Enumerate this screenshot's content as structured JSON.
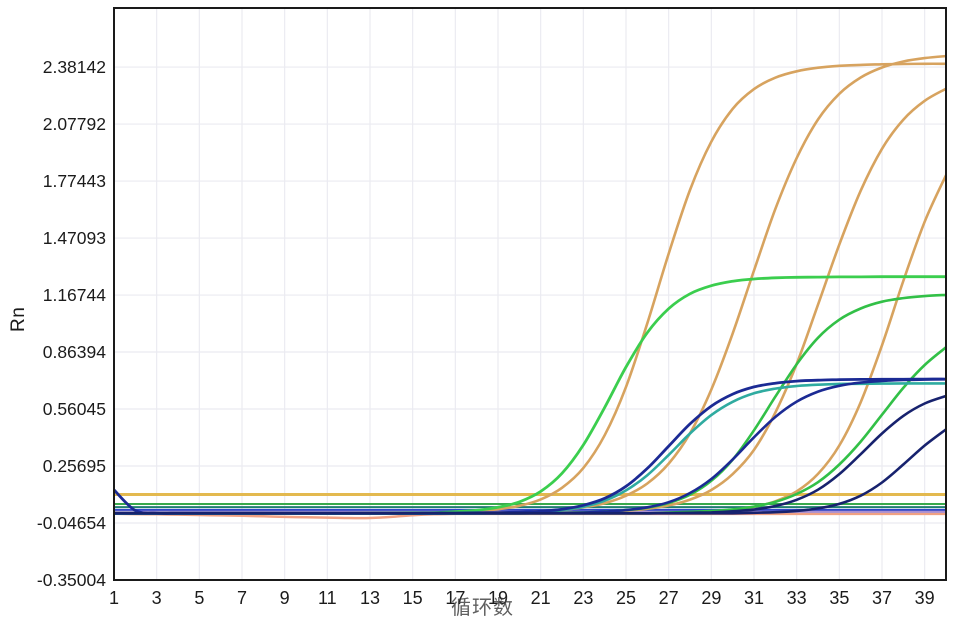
{
  "axis": {
    "y_label": "Rn",
    "x_label": "循环数",
    "y_ticks": [
      "2.38142",
      "2.07792",
      "1.77443",
      "1.47093",
      "1.16744",
      "0.86394",
      "0.56045",
      "0.25695",
      "-0.04654",
      "-0.35004"
    ],
    "x_ticks": [
      "1",
      "3",
      "5",
      "7",
      "9",
      "11",
      "13",
      "15",
      "17",
      "19",
      "21",
      "23",
      "25",
      "27",
      "29",
      "31",
      "33",
      "35",
      "37",
      "39"
    ]
  },
  "colors": {
    "background": "#ffffff",
    "plot_border": "#1a1a1a",
    "grid": "#ebebf1",
    "tick_text": "#1b1b1b",
    "orange": "#d7a35f",
    "green_bright": "#3bce4e",
    "green": "#32c047",
    "teal": "#2faba0",
    "navy": "#1b2a94",
    "navy_dark": "#17226e",
    "threshold_yellow": "#e3b94f",
    "flat_green": "#38a94c",
    "flat_teal": "#1f7e71",
    "flat_blue": "#2e45c8",
    "purple": "#a98fd2",
    "salmon": "#f0a183"
  },
  "chart_data": {
    "type": "line",
    "title": "",
    "xlabel": "循环数",
    "ylabel": "Rn",
    "x_range": [
      1,
      40
    ],
    "y_range": [
      -0.35004,
      2.696
    ],
    "grid": true,
    "legend": "none",
    "x": [
      1,
      2,
      3,
      4,
      5,
      6,
      7,
      8,
      9,
      10,
      11,
      12,
      13,
      14,
      15,
      16,
      17,
      18,
      19,
      20,
      21,
      22,
      23,
      24,
      25,
      26,
      27,
      28,
      29,
      30,
      31,
      32,
      33,
      34,
      35,
      36,
      37,
      38,
      39,
      40
    ],
    "threshold_lines": [
      {
        "name": "threshold-yellow",
        "value": 0.105,
        "color": "#e3b94f",
        "width": 3
      },
      {
        "name": "flat-line-green",
        "value": 0.055,
        "color": "#38a94c",
        "width": 2
      },
      {
        "name": "flat-line-teal",
        "value": 0.038,
        "color": "#1f7e71",
        "width": 2
      },
      {
        "name": "flat-line-blue",
        "value": 0.022,
        "color": "#2e45c8",
        "width": 2.5
      }
    ],
    "series": [
      {
        "name": "sample-salmon-flat",
        "color": "#f0a183",
        "width": 2.5,
        "values": [
          0.003,
          0.001,
          0.0,
          -0.002,
          -0.004,
          -0.006,
          -0.008,
          -0.011,
          -0.014,
          -0.016,
          -0.018,
          -0.02,
          -0.02,
          -0.014,
          -0.005,
          0.0,
          0.002,
          0.002,
          0.002,
          0.002,
          0.002,
          0.002,
          0.002,
          0.002,
          0.002,
          0.002,
          0.002,
          0.002,
          0.002,
          0.002,
          0.002,
          0.002,
          0.002,
          0.002,
          0.002,
          0.002,
          0.002,
          0.002,
          0.002,
          0.002
        ]
      },
      {
        "name": "sample-purple-flat",
        "color": "#a98fd2",
        "width": 2.2,
        "values": [
          0.013,
          0.013,
          0.013,
          0.013,
          0.013,
          0.013,
          0.013,
          0.013,
          0.013,
          0.013,
          0.013,
          0.013,
          0.013,
          0.013,
          0.013,
          0.013,
          0.013,
          0.013,
          0.013,
          0.013,
          0.013,
          0.013,
          0.013,
          0.013,
          0.013,
          0.013,
          0.013,
          0.013,
          0.013,
          0.013,
          0.013,
          0.013,
          0.013,
          0.013,
          0.013,
          0.013,
          0.013,
          0.013,
          0.013,
          0.013
        ]
      },
      {
        "name": "sample-orange-1",
        "color": "#d7a35f",
        "width": 2.6,
        "values": [
          0.005,
          0.005,
          0.005,
          0.005,
          0.005,
          0.005,
          0.005,
          0.005,
          0.005,
          0.005,
          0.005,
          0.005,
          0.006,
          0.006,
          0.007,
          0.008,
          0.011,
          0.017,
          0.027,
          0.045,
          0.079,
          0.141,
          0.246,
          0.421,
          0.678,
          1.017,
          1.388,
          1.727,
          1.984,
          2.159,
          2.264,
          2.325,
          2.359,
          2.378,
          2.388,
          2.393,
          2.396,
          2.398,
          2.399,
          2.399
        ]
      },
      {
        "name": "sample-orange-2",
        "color": "#d7a35f",
        "width": 2.6,
        "values": [
          0.005,
          0.005,
          0.005,
          0.005,
          0.005,
          0.005,
          0.005,
          0.005,
          0.005,
          0.005,
          0.005,
          0.005,
          0.005,
          0.005,
          0.005,
          0.005,
          0.006,
          0.007,
          0.009,
          0.011,
          0.016,
          0.023,
          0.037,
          0.059,
          0.099,
          0.164,
          0.27,
          0.431,
          0.664,
          0.963,
          1.298,
          1.625,
          1.897,
          2.102,
          2.239,
          2.326,
          2.379,
          2.411,
          2.429,
          2.44
        ]
      },
      {
        "name": "sample-orange-3",
        "color": "#d7a35f",
        "width": 2.6,
        "values": [
          0.005,
          0.005,
          0.005,
          0.005,
          0.005,
          0.005,
          0.005,
          0.005,
          0.005,
          0.005,
          0.005,
          0.005,
          0.005,
          0.005,
          0.005,
          0.005,
          0.005,
          0.005,
          0.005,
          0.005,
          0.006,
          0.008,
          0.01,
          0.013,
          0.019,
          0.029,
          0.047,
          0.078,
          0.129,
          0.214,
          0.343,
          0.541,
          0.801,
          1.116,
          1.436,
          1.723,
          1.946,
          2.101,
          2.202,
          2.266
        ]
      },
      {
        "name": "sample-orange-4",
        "color": "#d7a35f",
        "width": 2.6,
        "values": [
          0.005,
          0.005,
          0.005,
          0.005,
          0.005,
          0.005,
          0.005,
          0.005,
          0.005,
          0.005,
          0.005,
          0.005,
          0.005,
          0.005,
          0.005,
          0.005,
          0.005,
          0.005,
          0.005,
          0.005,
          0.005,
          0.005,
          0.005,
          0.005,
          0.005,
          0.005,
          0.007,
          0.01,
          0.015,
          0.024,
          0.04,
          0.069,
          0.122,
          0.215,
          0.366,
          0.597,
          0.9,
          1.242,
          1.558,
          1.805
        ]
      },
      {
        "name": "sample-green-1",
        "color": "#3bce4e",
        "width": 2.8,
        "values": [
          0.005,
          0.005,
          0.005,
          0.005,
          0.005,
          0.005,
          0.005,
          0.005,
          0.005,
          0.005,
          0.005,
          0.005,
          0.006,
          0.007,
          0.008,
          0.009,
          0.014,
          0.021,
          0.037,
          0.066,
          0.122,
          0.218,
          0.369,
          0.569,
          0.784,
          0.967,
          1.095,
          1.174,
          1.217,
          1.241,
          1.253,
          1.259,
          1.262,
          1.263,
          1.264,
          1.264,
          1.265,
          1.265,
          1.265,
          1.265
        ]
      },
      {
        "name": "sample-green-2",
        "color": "#32c047",
        "width": 2.6,
        "values": [
          0.005,
          0.005,
          0.005,
          0.005,
          0.005,
          0.005,
          0.005,
          0.005,
          0.005,
          0.005,
          0.005,
          0.005,
          0.005,
          0.005,
          0.005,
          0.005,
          0.005,
          0.005,
          0.005,
          0.005,
          0.006,
          0.008,
          0.01,
          0.014,
          0.022,
          0.035,
          0.06,
          0.104,
          0.178,
          0.291,
          0.447,
          0.626,
          0.799,
          0.94,
          1.036,
          1.096,
          1.132,
          1.151,
          1.162,
          1.168
        ]
      },
      {
        "name": "sample-green-3",
        "color": "#32c047",
        "width": 2.6,
        "values": [
          0.005,
          0.005,
          0.005,
          0.005,
          0.005,
          0.005,
          0.005,
          0.005,
          0.005,
          0.005,
          0.005,
          0.005,
          0.005,
          0.005,
          0.005,
          0.005,
          0.005,
          0.005,
          0.005,
          0.005,
          0.005,
          0.005,
          0.005,
          0.005,
          0.005,
          0.005,
          0.009,
          0.013,
          0.018,
          0.026,
          0.041,
          0.066,
          0.108,
          0.171,
          0.265,
          0.387,
          0.53,
          0.673,
          0.795,
          0.889
        ]
      },
      {
        "name": "sample-teal-1",
        "color": "#2faba0",
        "width": 2.6,
        "values": [
          0.003,
          0.003,
          0.003,
          0.003,
          0.003,
          0.003,
          0.003,
          0.003,
          0.003,
          0.003,
          0.003,
          0.003,
          0.003,
          0.003,
          0.003,
          0.003,
          0.004,
          0.004,
          0.006,
          0.008,
          0.013,
          0.023,
          0.04,
          0.072,
          0.127,
          0.208,
          0.316,
          0.43,
          0.528,
          0.599,
          0.644,
          0.669,
          0.683,
          0.69,
          0.694,
          0.695,
          0.696,
          0.697,
          0.697,
          0.697
        ]
      },
      {
        "name": "sample-navy-1",
        "color": "#1b2a94",
        "width": 2.8,
        "values": [
          0.13,
          0.02,
          0.006,
          0.006,
          0.006,
          0.006,
          0.006,
          0.006,
          0.006,
          0.006,
          0.006,
          0.006,
          0.006,
          0.006,
          0.006,
          0.007,
          0.007,
          0.008,
          0.009,
          0.011,
          0.016,
          0.027,
          0.048,
          0.085,
          0.149,
          0.244,
          0.363,
          0.481,
          0.576,
          0.64,
          0.678,
          0.698,
          0.709,
          0.714,
          0.717,
          0.718,
          0.719,
          0.719,
          0.72,
          0.72
        ]
      },
      {
        "name": "sample-navy-2",
        "color": "#1b2a94",
        "width": 2.6,
        "values": [
          0.005,
          0.005,
          0.005,
          0.005,
          0.005,
          0.005,
          0.005,
          0.005,
          0.005,
          0.005,
          0.005,
          0.005,
          0.005,
          0.005,
          0.005,
          0.005,
          0.005,
          0.005,
          0.005,
          0.005,
          0.006,
          0.007,
          0.009,
          0.014,
          0.022,
          0.037,
          0.064,
          0.113,
          0.188,
          0.292,
          0.41,
          0.518,
          0.6,
          0.653,
          0.684,
          0.701,
          0.71,
          0.715,
          0.717,
          0.719
        ]
      },
      {
        "name": "sample-navy-3",
        "color": "#17226e",
        "width": 2.6,
        "values": [
          0.005,
          0.005,
          0.005,
          0.005,
          0.005,
          0.005,
          0.005,
          0.005,
          0.005,
          0.005,
          0.005,
          0.005,
          0.005,
          0.005,
          0.005,
          0.005,
          0.005,
          0.005,
          0.005,
          0.005,
          0.005,
          0.005,
          0.005,
          0.005,
          0.005,
          0.005,
          0.006,
          0.008,
          0.01,
          0.016,
          0.025,
          0.044,
          0.077,
          0.131,
          0.214,
          0.32,
          0.43,
          0.524,
          0.59,
          0.63
        ]
      },
      {
        "name": "sample-navy-4",
        "color": "#17226e",
        "width": 2.6,
        "values": [
          0.005,
          0.005,
          0.005,
          0.005,
          0.005,
          0.005,
          0.005,
          0.005,
          0.005,
          0.005,
          0.005,
          0.005,
          0.005,
          0.005,
          0.005,
          0.005,
          0.005,
          0.005,
          0.005,
          0.005,
          0.005,
          0.005,
          0.005,
          0.005,
          0.005,
          0.005,
          0.005,
          0.005,
          0.005,
          0.005,
          0.008,
          0.011,
          0.018,
          0.031,
          0.055,
          0.099,
          0.169,
          0.265,
          0.366,
          0.452
        ]
      }
    ]
  }
}
